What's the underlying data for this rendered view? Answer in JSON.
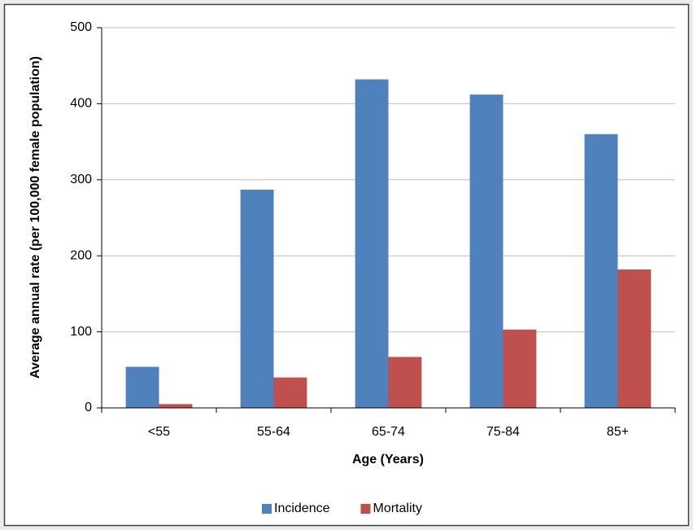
{
  "chart_data": {
    "type": "bar",
    "x_label": "Age (Years)",
    "y_label": "Average annual rate (per 100,000 female population)",
    "categories": [
      "<55",
      "55-64",
      "65-74",
      "75-84",
      "85+"
    ],
    "series": [
      {
        "name": "Incidence",
        "color": "#4f81bd",
        "values": [
          54,
          287,
          432,
          412,
          360
        ]
      },
      {
        "name": "Mortality",
        "color": "#c0504d",
        "values": [
          5,
          40,
          67,
          103,
          182
        ]
      }
    ],
    "ylim": [
      0,
      500
    ],
    "yticks": [
      0,
      100,
      200,
      300,
      400,
      500
    ],
    "grid": true,
    "legend": "bottom"
  }
}
